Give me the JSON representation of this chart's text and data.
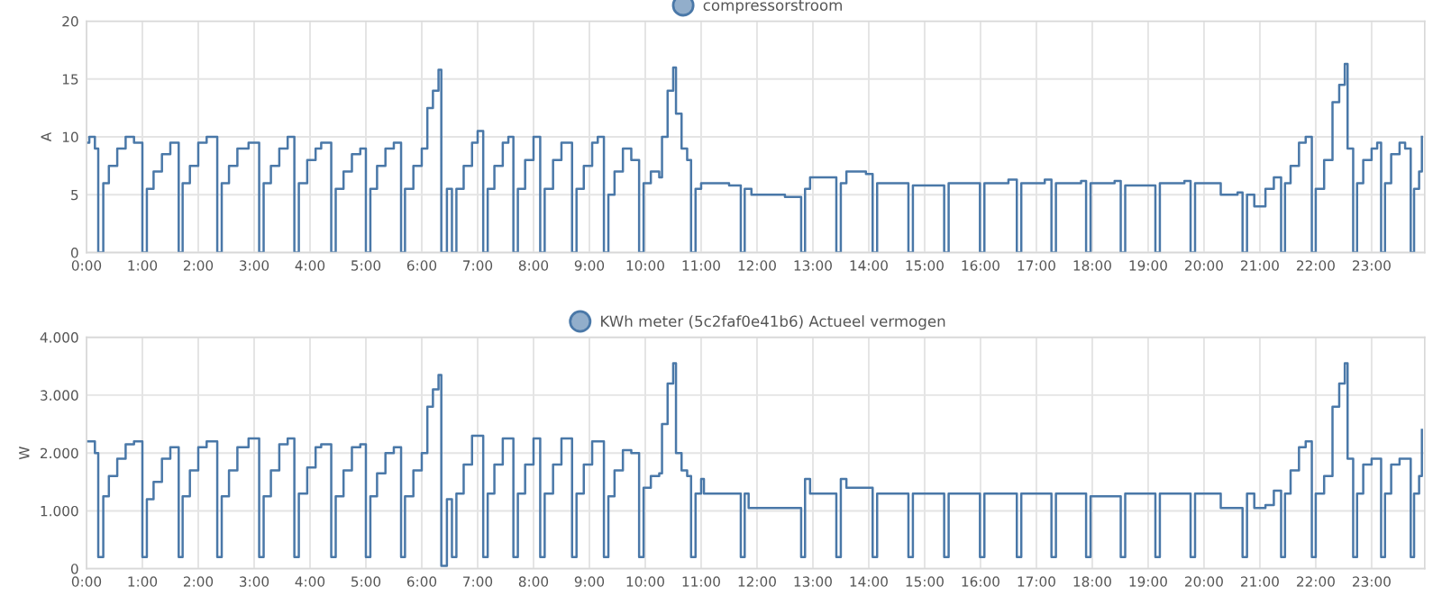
{
  "chart_data": [
    {
      "type": "step",
      "ylabel": "A",
      "legend": "top",
      "grid": true,
      "xlim": [
        0,
        23.95
      ],
      "ylim": [
        0,
        20
      ],
      "yticks": [
        0,
        5,
        10,
        15,
        20
      ],
      "xticks": [
        {
          "value": 0,
          "label": "0:00"
        },
        {
          "value": 1,
          "label": "1:00"
        },
        {
          "value": 2,
          "label": "2:00"
        },
        {
          "value": 3,
          "label": "3:00"
        },
        {
          "value": 4,
          "label": "4:00"
        },
        {
          "value": 5,
          "label": "5:00"
        },
        {
          "value": 6,
          "label": "6:00"
        },
        {
          "value": 7,
          "label": "7:00"
        },
        {
          "value": 8,
          "label": "8:00"
        },
        {
          "value": 9,
          "label": "9:00"
        },
        {
          "value": 10,
          "label": "10:00"
        },
        {
          "value": 11,
          "label": "11:00"
        },
        {
          "value": 12,
          "label": "12:00"
        },
        {
          "value": 13,
          "label": "13:00"
        },
        {
          "value": 14,
          "label": "14:00"
        },
        {
          "value": 15,
          "label": "15:00"
        },
        {
          "value": 16,
          "label": "16:00"
        },
        {
          "value": 17,
          "label": "17:00"
        },
        {
          "value": 18,
          "label": "18:00"
        },
        {
          "value": 19,
          "label": "19:00"
        },
        {
          "value": 20,
          "label": "20:00"
        },
        {
          "value": 21,
          "label": "21:00"
        },
        {
          "value": 22,
          "label": "22:00"
        },
        {
          "value": 23,
          "label": "23:00"
        }
      ],
      "series": [
        {
          "name": "compressorstroom",
          "color": "#4a78a8",
          "x": [
            0,
            0.05,
            0.15,
            0.21,
            0.3,
            0.4,
            0.55,
            0.7,
            0.85,
            1.0,
            1.08,
            1.2,
            1.35,
            1.5,
            1.65,
            1.72,
            1.85,
            2.0,
            2.15,
            2.34,
            2.42,
            2.55,
            2.7,
            2.9,
            3.09,
            3.17,
            3.3,
            3.45,
            3.6,
            3.72,
            3.8,
            3.95,
            4.1,
            4.2,
            4.38,
            4.46,
            4.6,
            4.75,
            4.9,
            5.0,
            5.08,
            5.2,
            5.35,
            5.5,
            5.63,
            5.7,
            5.85,
            6.0,
            6.1,
            6.2,
            6.3,
            6.35,
            6.45,
            6.54,
            6.62,
            6.75,
            6.9,
            7.0,
            7.1,
            7.18,
            7.3,
            7.45,
            7.55,
            7.64,
            7.72,
            7.85,
            8.0,
            8.12,
            8.2,
            8.35,
            8.5,
            8.69,
            8.77,
            8.9,
            9.05,
            9.15,
            9.26,
            9.34,
            9.45,
            9.6,
            9.75,
            9.89,
            9.97,
            10.1,
            10.25,
            10.3,
            10.4,
            10.5,
            10.55,
            10.65,
            10.75,
            10.82,
            10.9,
            11.0,
            11.5,
            11.71,
            11.78,
            11.9,
            12.5,
            12.79,
            12.86,
            12.95,
            13.3,
            13.42,
            13.5,
            13.6,
            13.95,
            14.07,
            14.15,
            14.6,
            14.71,
            14.79,
            15.25,
            15.35,
            15.43,
            15.9,
            15.99,
            16.07,
            16.5,
            16.65,
            16.73,
            17.15,
            17.27,
            17.35,
            17.8,
            17.89,
            17.97,
            18.4,
            18.51,
            18.59,
            19.0,
            19.13,
            19.21,
            19.65,
            19.76,
            19.84,
            20.2,
            20.3,
            20.6,
            20.69,
            20.77,
            20.9,
            21.1,
            21.25,
            21.38,
            21.45,
            21.55,
            21.7,
            21.82,
            21.93,
            22.0,
            22.15,
            22.3,
            22.42,
            22.52,
            22.57,
            22.67,
            22.74,
            22.85,
            23.0,
            23.1,
            23.17,
            23.24,
            23.35,
            23.5,
            23.6,
            23.7,
            23.76,
            23.85,
            23.9
          ],
          "values": [
            9.5,
            10,
            9,
            0,
            6,
            7.5,
            9,
            10,
            9.5,
            0,
            5.5,
            7,
            8.5,
            9.5,
            0,
            6,
            7.5,
            9.5,
            10,
            0,
            6,
            7.5,
            9,
            9.5,
            0,
            6,
            7.5,
            9,
            10,
            0,
            6,
            8,
            9,
            9.5,
            0,
            5.5,
            7,
            8.5,
            9,
            0,
            5.5,
            7.5,
            9,
            9.5,
            0,
            5.5,
            7.5,
            9,
            12.5,
            14,
            15.8,
            0,
            5.5,
            0,
            5.5,
            7.5,
            9.5,
            10.5,
            0,
            5.5,
            7.5,
            9.5,
            10,
            0,
            5.5,
            8,
            10,
            0,
            5.5,
            8,
            9.5,
            0,
            5.5,
            7.5,
            9.5,
            10,
            0,
            5,
            7,
            9,
            8,
            0,
            6,
            7,
            6.5,
            10,
            14,
            16,
            12,
            9,
            8,
            0,
            5.5,
            6,
            5.8,
            0,
            5.5,
            5,
            4.8,
            0,
            5.5,
            6.5,
            6.5,
            0,
            6,
            7,
            6.8,
            0,
            6,
            6,
            0,
            5.8,
            5.8,
            0,
            6,
            6,
            0,
            6,
            6.3,
            0,
            6,
            6.3,
            0,
            6,
            6.2,
            0,
            6,
            6.2,
            0,
            5.8,
            5.8,
            0,
            6,
            6.2,
            0,
            6,
            6,
            5,
            5.2,
            0,
            5,
            4,
            5.5,
            6.5,
            0,
            6,
            7.5,
            9.5,
            10,
            0,
            5.5,
            8,
            13,
            14.5,
            16.3,
            9,
            0,
            6,
            8,
            9,
            9.5,
            0,
            6,
            8.5,
            9.5,
            9,
            0,
            5.5,
            7,
            10
          ]
        }
      ]
    },
    {
      "type": "step",
      "ylabel": "W",
      "legend": "top",
      "grid": true,
      "xlim": [
        0,
        23.95
      ],
      "ylim": [
        0,
        4000
      ],
      "yticks": [
        0,
        {
          "value": 1000,
          "label": "1.000"
        },
        {
          "value": 2000,
          "label": "2.000"
        },
        {
          "value": 3000,
          "label": "3.000"
        },
        {
          "value": 4000,
          "label": "4.000"
        }
      ],
      "xticks": [
        {
          "value": 0,
          "label": "0:00"
        },
        {
          "value": 1,
          "label": "1:00"
        },
        {
          "value": 2,
          "label": "2:00"
        },
        {
          "value": 3,
          "label": "3:00"
        },
        {
          "value": 4,
          "label": "4:00"
        },
        {
          "value": 5,
          "label": "5:00"
        },
        {
          "value": 6,
          "label": "6:00"
        },
        {
          "value": 7,
          "label": "7:00"
        },
        {
          "value": 8,
          "label": "8:00"
        },
        {
          "value": 9,
          "label": "9:00"
        },
        {
          "value": 10,
          "label": "10:00"
        },
        {
          "value": 11,
          "label": "11:00"
        },
        {
          "value": 12,
          "label": "12:00"
        },
        {
          "value": 13,
          "label": "13:00"
        },
        {
          "value": 14,
          "label": "14:00"
        },
        {
          "value": 15,
          "label": "15:00"
        },
        {
          "value": 16,
          "label": "16:00"
        },
        {
          "value": 17,
          "label": "17:00"
        },
        {
          "value": 18,
          "label": "18:00"
        },
        {
          "value": 19,
          "label": "19:00"
        },
        {
          "value": 20,
          "label": "20:00"
        },
        {
          "value": 21,
          "label": "21:00"
        },
        {
          "value": 22,
          "label": "22:00"
        },
        {
          "value": 23,
          "label": "23:00"
        }
      ],
      "series": [
        {
          "name": "KWh meter (5c2faf0e41b6) Actueel vermogen",
          "color": "#4a78a8",
          "x": [
            0,
            0.15,
            0.21,
            0.3,
            0.4,
            0.55,
            0.7,
            0.85,
            1.0,
            1.08,
            1.2,
            1.35,
            1.5,
            1.65,
            1.72,
            1.85,
            2.0,
            2.15,
            2.34,
            2.42,
            2.55,
            2.7,
            2.9,
            3.09,
            3.17,
            3.3,
            3.45,
            3.6,
            3.72,
            3.8,
            3.95,
            4.1,
            4.2,
            4.38,
            4.46,
            4.6,
            4.75,
            4.9,
            5.0,
            5.08,
            5.2,
            5.35,
            5.5,
            5.63,
            5.7,
            5.85,
            6.0,
            6.1,
            6.2,
            6.3,
            6.35,
            6.45,
            6.54,
            6.62,
            6.75,
            6.9,
            7.1,
            7.18,
            7.3,
            7.45,
            7.64,
            7.72,
            7.85,
            8.0,
            8.12,
            8.2,
            8.35,
            8.5,
            8.69,
            8.77,
            8.9,
            9.05,
            9.26,
            9.34,
            9.45,
            9.6,
            9.75,
            9.89,
            9.97,
            10.1,
            10.25,
            10.3,
            10.4,
            10.5,
            10.55,
            10.65,
            10.75,
            10.82,
            10.9,
            11.0,
            11.05,
            11.71,
            11.78,
            11.85,
            12.79,
            12.86,
            12.95,
            13.42,
            13.5,
            13.6,
            14.07,
            14.15,
            14.71,
            14.79,
            15.35,
            15.43,
            15.99,
            16.07,
            16.65,
            16.73,
            17.27,
            17.35,
            17.89,
            17.97,
            18.51,
            18.59,
            19.13,
            19.21,
            19.76,
            19.84,
            20.3,
            20.69,
            20.77,
            20.9,
            21.1,
            21.25,
            21.38,
            21.45,
            21.55,
            21.7,
            21.82,
            21.93,
            22.0,
            22.15,
            22.3,
            22.42,
            22.52,
            22.57,
            22.67,
            22.74,
            22.85,
            23.0,
            23.17,
            23.24,
            23.35,
            23.5,
            23.7,
            23.76,
            23.85,
            23.9
          ],
          "values": [
            2200,
            2000,
            200,
            1250,
            1600,
            1900,
            2150,
            2200,
            200,
            1200,
            1500,
            1900,
            2100,
            200,
            1250,
            1700,
            2100,
            2200,
            200,
            1250,
            1700,
            2100,
            2250,
            200,
            1250,
            1700,
            2150,
            2250,
            200,
            1300,
            1750,
            2100,
            2150,
            200,
            1250,
            1700,
            2100,
            2150,
            200,
            1250,
            1650,
            2000,
            2100,
            200,
            1250,
            1700,
            2000,
            2800,
            3100,
            3350,
            50,
            1200,
            200,
            1300,
            1800,
            2300,
            200,
            1300,
            1800,
            2250,
            200,
            1300,
            1800,
            2250,
            200,
            1300,
            1800,
            2250,
            200,
            1300,
            1800,
            2200,
            200,
            1250,
            1700,
            2050,
            2000,
            200,
            1400,
            1600,
            1650,
            2500,
            3200,
            3550,
            2000,
            1700,
            1600,
            200,
            1300,
            1550,
            1300,
            200,
            1300,
            1050,
            200,
            1550,
            1300,
            200,
            1550,
            1400,
            200,
            1300,
            200,
            1300,
            200,
            1300,
            200,
            1300,
            200,
            1300,
            200,
            1300,
            200,
            1250,
            200,
            1300,
            200,
            1300,
            200,
            1300,
            1050,
            200,
            1300,
            1050,
            1100,
            1350,
            200,
            1300,
            1700,
            2100,
            2200,
            200,
            1300,
            1600,
            2800,
            3200,
            3550,
            1900,
            200,
            1300,
            1800,
            1900,
            200,
            1300,
            1800,
            1900,
            200,
            1300,
            1600,
            2400
          ]
        }
      ]
    }
  ]
}
